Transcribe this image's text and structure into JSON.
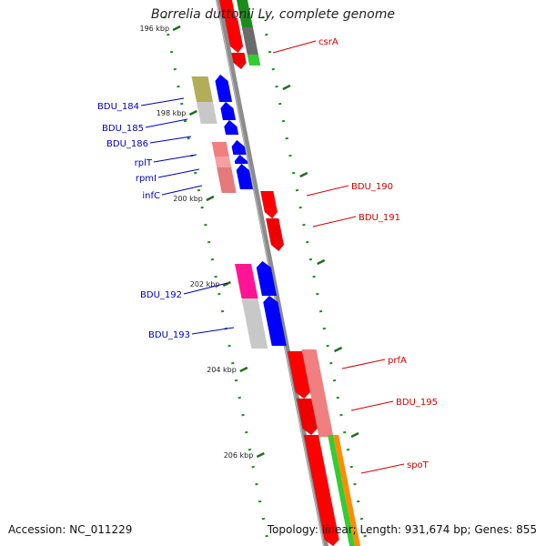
{
  "title": "Borrelia duttonii Ly, complete genome",
  "footer": {
    "accession": "Accession: NC_011229",
    "summary": "Topology: linear; Length: 931,674 bp; Genes: 855"
  },
  "colors": {
    "backbone": "#8c8c8c",
    "forward_label": "#0000b4",
    "reverse_label": "#d00000",
    "tick_dots": "#1a8c1a",
    "tick_major": "#1f6f1f"
  },
  "ticks": [
    {
      "label": "196 kbp"
    },
    {
      "label": "198 kbp"
    },
    {
      "label": "200 kbp"
    },
    {
      "label": "202 kbp"
    },
    {
      "label": "204 kbp"
    },
    {
      "label": "206 kbp"
    }
  ],
  "genes": [
    {
      "name": "BDU_184",
      "strand": "forward"
    },
    {
      "name": "BDU_185",
      "strand": "forward"
    },
    {
      "name": "BDU_186",
      "strand": "forward"
    },
    {
      "name": "rplT",
      "strand": "forward"
    },
    {
      "name": "rpmI",
      "strand": "forward"
    },
    {
      "name": "infC",
      "strand": "forward"
    },
    {
      "name": "BDU_192",
      "strand": "forward"
    },
    {
      "name": "BDU_193",
      "strand": "forward"
    },
    {
      "name": "csrA",
      "strand": "reverse"
    },
    {
      "name": "BDU_190",
      "strand": "reverse"
    },
    {
      "name": "BDU_191",
      "strand": "reverse"
    },
    {
      "name": "prfA",
      "strand": "reverse"
    },
    {
      "name": "BDU_195",
      "strand": "reverse"
    },
    {
      "name": "spoT",
      "strand": "reverse"
    }
  ]
}
